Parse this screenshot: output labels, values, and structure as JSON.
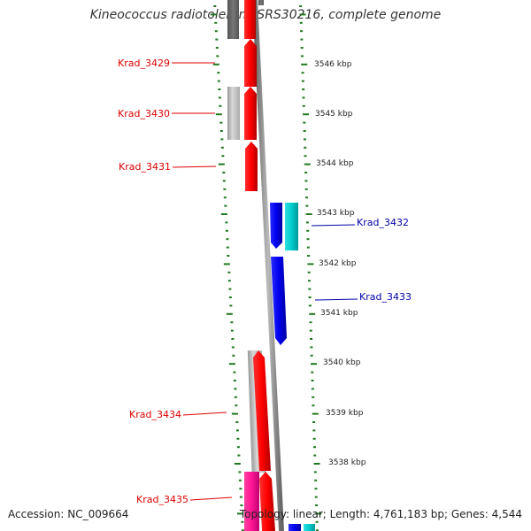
{
  "title": "Kineococcus radiotolerans SRS30216, complete genome",
  "footer": {
    "accession": "Accession: NC_009664",
    "topology": "Topology: linear; Length: 4,761,183 bp; Genes: 4,544"
  },
  "colors": {
    "forward_gene": "#ff0000",
    "reverse_gene": "#0000ee",
    "forward_label": "#dd0000",
    "reverse_label": "#0000aa",
    "cds_gray": "#bbbbbb",
    "cds_cyan": "#00cccc",
    "cds_magenta": "#ff1493",
    "ruler_green": "#227722",
    "backbone": "#888888"
  },
  "scale": {
    "unit": "kbp",
    "ticks": [
      3546,
      3545,
      3544,
      3543,
      3542,
      3541,
      3540,
      3539,
      3538
    ],
    "tick_labels": [
      "3546 kbp",
      "3545 kbp",
      "3544 kbp",
      "3543 kbp",
      "3542 kbp",
      "3541 kbp",
      "3540 kbp",
      "3539 kbp",
      "3538 kbp"
    ]
  },
  "genes": [
    {
      "label": "Krad_3429",
      "strand": "forward"
    },
    {
      "label": "Krad_3430",
      "strand": "forward"
    },
    {
      "label": "Krad_3431",
      "strand": "forward"
    },
    {
      "label": "Krad_3432",
      "strand": "reverse"
    },
    {
      "label": "Krad_3433",
      "strand": "reverse"
    },
    {
      "label": "Krad_3434",
      "strand": "forward"
    },
    {
      "label": "Krad_3435",
      "strand": "forward"
    }
  ]
}
